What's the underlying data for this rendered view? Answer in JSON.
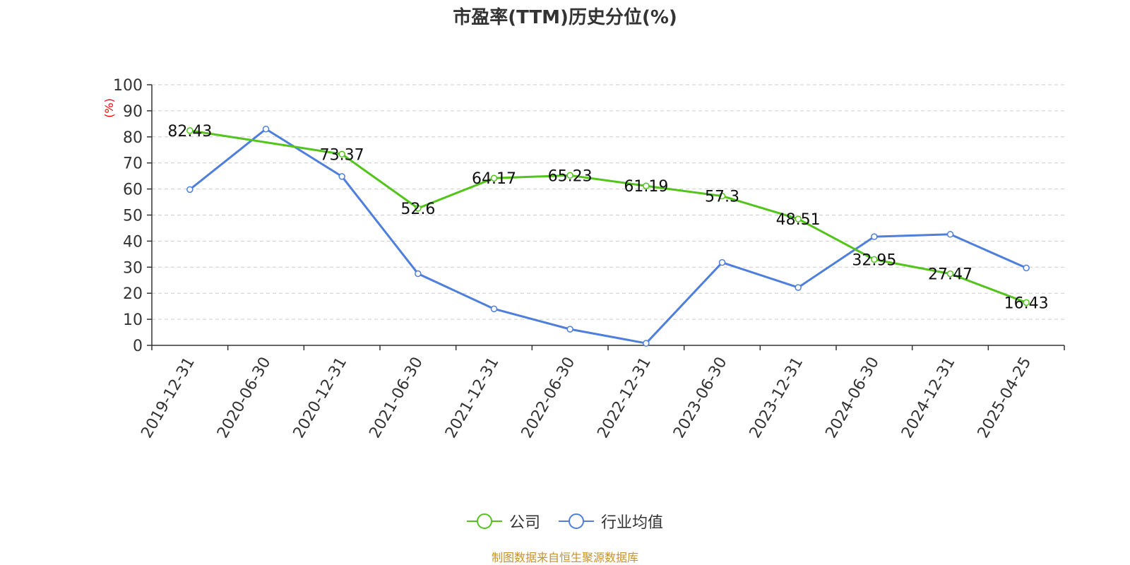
{
  "chart_data": {
    "type": "line",
    "title": "市盈率(TTM)历史分位(%)",
    "ylabel": "(%)",
    "xlabel": "",
    "ylim": [
      0,
      100
    ],
    "yticks": [
      0,
      10,
      20,
      30,
      40,
      50,
      60,
      70,
      80,
      90,
      100
    ],
    "grid": true,
    "legend_position": "bottom",
    "categories": [
      "2019-12-31",
      "2020-06-30",
      "2020-12-31",
      "2021-06-30",
      "2021-12-31",
      "2022-06-30",
      "2022-12-31",
      "2023-06-30",
      "2023-12-31",
      "2024-06-30",
      "2024-12-31",
      "2025-04-25"
    ],
    "series": [
      {
        "name": "公司",
        "color": "#52c41a",
        "values": [
          82.43,
          null,
          73.37,
          52.6,
          64.17,
          65.23,
          61.19,
          57.3,
          48.51,
          32.95,
          27.47,
          16.43
        ],
        "labels": [
          "82.43",
          "",
          "73.37",
          "52.6",
          "64.17",
          "65.23",
          "61.19",
          "57.3",
          "48.51",
          "32.95",
          "27.47",
          "16.43"
        ]
      },
      {
        "name": "行业均值",
        "color": "#4e7fdc",
        "values": [
          59.8,
          83.0,
          64.8,
          27.5,
          14.0,
          6.2,
          0.8,
          31.8,
          22.2,
          41.7,
          42.6,
          29.7
        ]
      }
    ]
  },
  "source_note": "制图数据来自恒生聚源数据库"
}
